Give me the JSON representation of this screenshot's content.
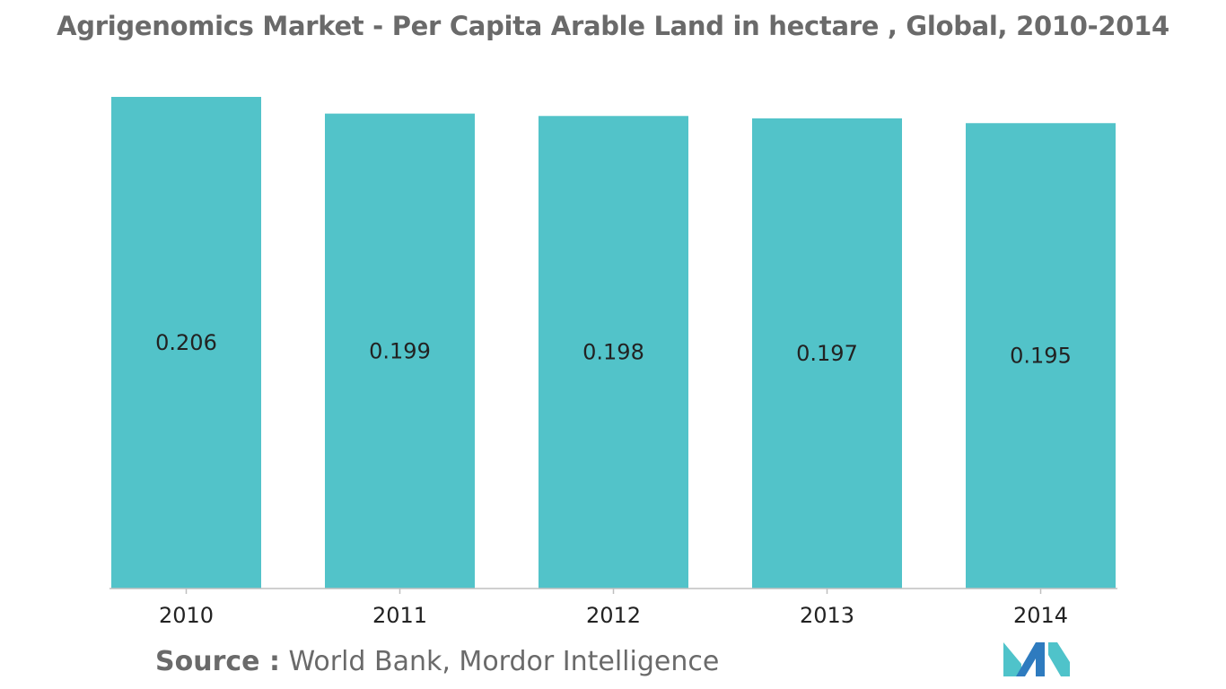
{
  "title": "Agrigenomics Market - Per Capita Arable Land in hectare , Global, 2010-2014",
  "source": {
    "label": "Source :",
    "text": "World Bank, Mordor Intelligence"
  },
  "logo": {
    "icon": "mordor-intelligence-logo-icon",
    "colors": [
      "#2e7bbf",
      "#4fc3ca"
    ]
  },
  "colors": {
    "bar": "#52c3c9",
    "axis": "#bfbfbf",
    "title_text": "#6a6a6a",
    "label_text": "#222222"
  },
  "chart_data": {
    "type": "bar",
    "title": "Agrigenomics Market - Per Capita Arable Land in hectare , Global, 2010-2014",
    "xlabel": "",
    "ylabel": "",
    "categories": [
      "2010",
      "2011",
      "2012",
      "2013",
      "2014"
    ],
    "values": [
      0.206,
      0.199,
      0.198,
      0.197,
      0.195
    ],
    "data_labels": [
      "0.206",
      "0.199",
      "0.198",
      "0.197",
      "0.195"
    ],
    "ylim": [
      0,
      0.206
    ],
    "grid": false,
    "legend": "none"
  }
}
